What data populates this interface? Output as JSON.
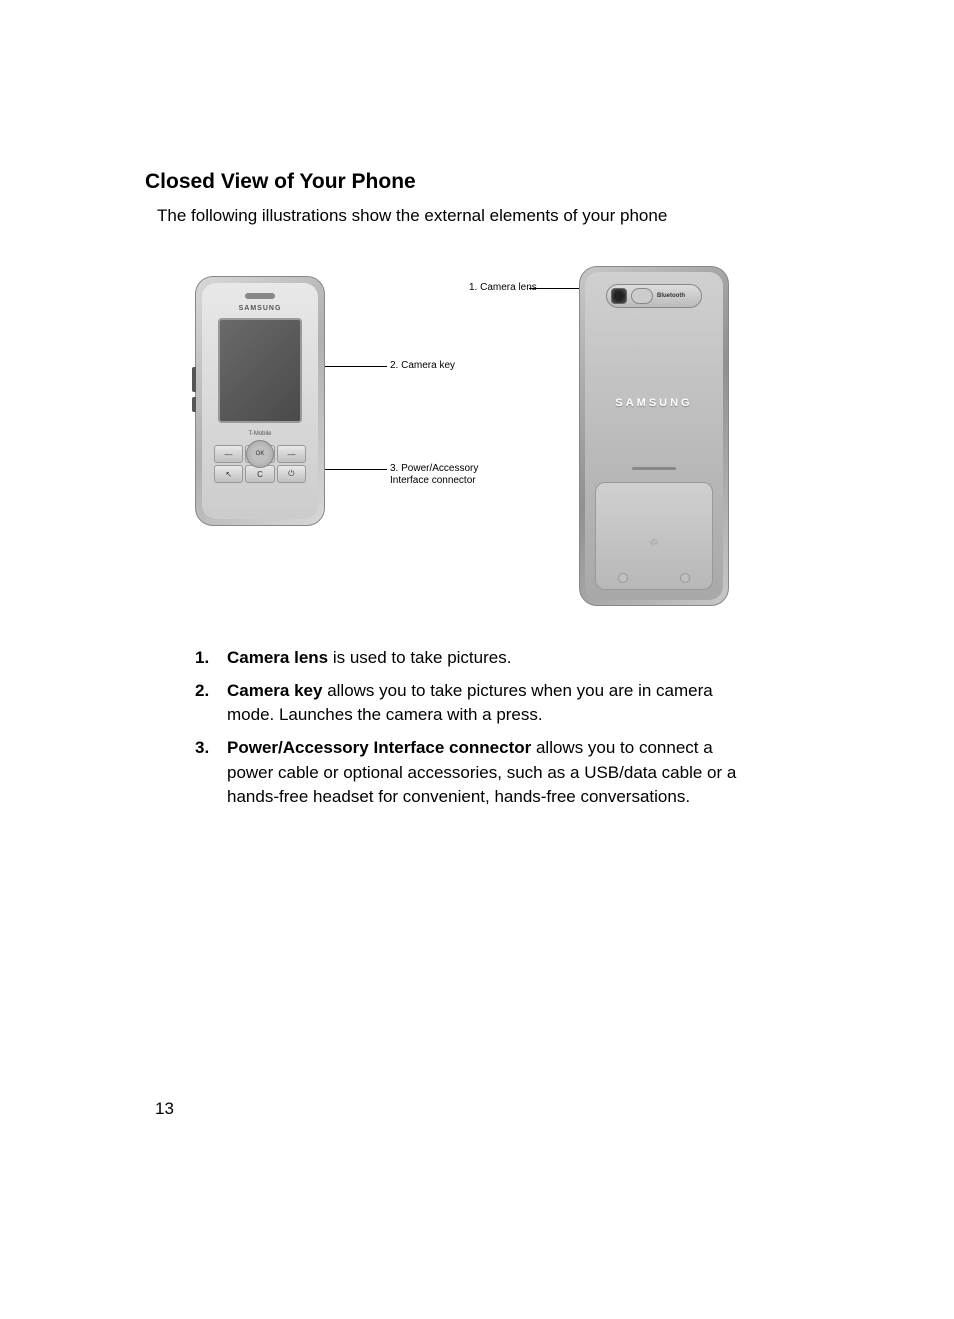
{
  "heading": "Closed View of Your Phone",
  "intro": "The following illustrations show the external elements of your phone",
  "diagram": {
    "front": {
      "logo": "SAMSUNG",
      "carrier": "T-Mobile",
      "dpad_center": "OK",
      "callouts": {
        "camera_key": "2. Camera key",
        "power_connector_line1": "3. Power/Accessory",
        "power_connector_line2": "Interface connector"
      }
    },
    "back": {
      "bluetooth_label": "Bluetooth",
      "logo": "SAMSUNG",
      "recycle": "♲",
      "callouts": {
        "camera_lens": "1. Camera lens"
      }
    }
  },
  "items": [
    {
      "num": "1.",
      "term": "Camera lens",
      "desc": " is used to take pictures."
    },
    {
      "num": "2.",
      "term": "Camera key",
      "desc": " allows you to take pictures when you are in camera mode. Launches the camera with a press."
    },
    {
      "num": "3.",
      "term": "Power/Accessory Interface connector",
      "desc": " allows you to connect a power cable or optional accessories, such as a USB/data cable or a hands-free headset for convenient, hands-free conversations."
    }
  ],
  "page_number": "13",
  "colors": {
    "text": "#000000",
    "background": "#ffffff",
    "phone_light": "#d8d8d8",
    "phone_dark": "#909090"
  }
}
